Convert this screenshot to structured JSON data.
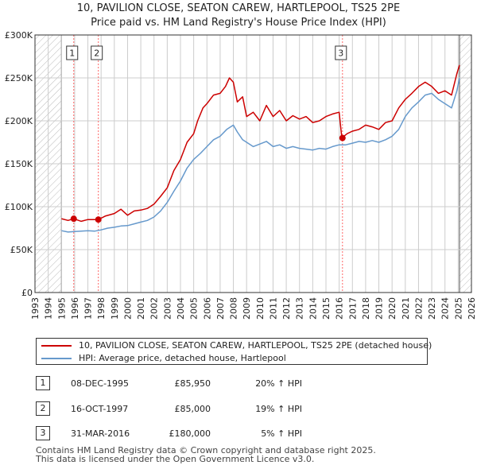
{
  "title_line1": "10, PAVILION CLOSE, SEATON CAREW, HARTLEPOOL, TS25 2PE",
  "title_line2": "Price paid vs. HM Land Registry's House Price Index (HPI)",
  "colors": {
    "property": "#cc0000",
    "hpi": "#6699cc",
    "grid": "#cccccc",
    "vline": "#ff6666"
  },
  "chart_data": {
    "type": "line",
    "xlim": [
      1993,
      2026
    ],
    "ylim": [
      0,
      300000
    ],
    "yticks": [
      0,
      50000,
      100000,
      150000,
      200000,
      250000,
      300000
    ],
    "ytick_labels": [
      "£0",
      "£50K",
      "£100K",
      "£150K",
      "£200K",
      "£250K",
      "£300K"
    ],
    "xticks": [
      1993,
      1994,
      1995,
      1996,
      1997,
      1998,
      1999,
      2000,
      2001,
      2002,
      2003,
      2004,
      2005,
      2006,
      2007,
      2008,
      2009,
      2010,
      2011,
      2012,
      2013,
      2014,
      2015,
      2016,
      2017,
      2018,
      2019,
      2020,
      2021,
      2022,
      2023,
      2024,
      2025,
      2026
    ],
    "hatched_ranges": [
      [
        1993,
        1995.0
      ],
      [
        2025.1,
        2026
      ]
    ],
    "series": [
      {
        "name": "10, PAVILION CLOSE, SEATON CAREW, HARTLEPOOL, TS25 2PE (detached house)",
        "x": [
          1995.0,
          1995.5,
          1995.93,
          1996.5,
          1997.0,
          1997.79,
          1998.3,
          1999.0,
          1999.5,
          2000.0,
          2000.5,
          2001.0,
          2001.5,
          2002.0,
          2002.5,
          2003.0,
          2003.5,
          2004.0,
          2004.5,
          2005.0,
          2005.3,
          2005.7,
          2006.0,
          2006.5,
          2007.0,
          2007.4,
          2007.7,
          2008.0,
          2008.3,
          2008.7,
          2009.0,
          2009.5,
          2010.0,
          2010.5,
          2011.0,
          2011.5,
          2012.0,
          2012.5,
          2013.0,
          2013.5,
          2014.0,
          2014.5,
          2015.0,
          2015.5,
          2016.0,
          2016.2,
          2016.6,
          2017.0,
          2017.5,
          2018.0,
          2018.5,
          2019.0,
          2019.5,
          2020.0,
          2020.5,
          2021.0,
          2021.5,
          2022.0,
          2022.5,
          2023.0,
          2023.5,
          2024.0,
          2024.5,
          2024.9,
          2025.1
        ],
        "y": [
          86000,
          84000,
          85950,
          83000,
          85000,
          85000,
          89000,
          92000,
          97000,
          90000,
          95000,
          96000,
          98000,
          103000,
          112000,
          122000,
          142000,
          155000,
          175000,
          185000,
          200000,
          215000,
          220000,
          230000,
          232000,
          240000,
          250000,
          245000,
          222000,
          228000,
          205000,
          210000,
          200000,
          218000,
          205000,
          212000,
          200000,
          206000,
          202000,
          205000,
          198000,
          200000,
          205000,
          208000,
          210000,
          180000,
          185000,
          188000,
          190000,
          195000,
          193000,
          190000,
          198000,
          200000,
          215000,
          225000,
          232000,
          240000,
          245000,
          240000,
          232000,
          235000,
          230000,
          255000,
          265000
        ]
      },
      {
        "name": "HPI: Average price, detached house, Hartlepool",
        "x": [
          1995.0,
          1995.5,
          1996.0,
          1996.5,
          1997.0,
          1997.5,
          1998.0,
          1998.5,
          1999.0,
          1999.5,
          2000.0,
          2000.5,
          2001.0,
          2001.5,
          2002.0,
          2002.5,
          2003.0,
          2003.5,
          2004.0,
          2004.5,
          2005.0,
          2005.5,
          2006.0,
          2006.5,
          2007.0,
          2007.5,
          2008.0,
          2008.3,
          2008.7,
          2009.0,
          2009.5,
          2010.0,
          2010.5,
          2011.0,
          2011.5,
          2012.0,
          2012.5,
          2013.0,
          2013.5,
          2014.0,
          2014.5,
          2015.0,
          2015.5,
          2016.0,
          2016.5,
          2017.0,
          2017.5,
          2018.0,
          2018.5,
          2019.0,
          2019.5,
          2020.0,
          2020.5,
          2021.0,
          2021.5,
          2022.0,
          2022.5,
          2023.0,
          2023.5,
          2024.0,
          2024.5,
          2024.9,
          2025.1
        ],
        "y": [
          72000,
          70500,
          71000,
          71500,
          72000,
          71500,
          73000,
          75000,
          76000,
          77500,
          78000,
          80000,
          82000,
          84000,
          88000,
          95000,
          105000,
          118000,
          130000,
          145000,
          155000,
          162000,
          170000,
          178000,
          182000,
          190000,
          195000,
          187000,
          178000,
          175000,
          170000,
          173000,
          176000,
          170000,
          172000,
          168000,
          170000,
          168000,
          167000,
          166000,
          168000,
          167000,
          170000,
          172000,
          172000,
          174000,
          176000,
          175000,
          177000,
          175000,
          178000,
          182000,
          190000,
          205000,
          215000,
          222000,
          230000,
          232000,
          225000,
          220000,
          215000,
          235000,
          250000
        ]
      }
    ],
    "sales": [
      {
        "label": "1",
        "x": 1995.93,
        "y": 85950
      },
      {
        "label": "2",
        "x": 1997.79,
        "y": 85000
      },
      {
        "label": "3",
        "x": 2016.25,
        "y": 180000
      }
    ]
  },
  "legend": {
    "property": "10, PAVILION CLOSE, SEATON CAREW, HARTLEPOOL, TS25 2PE (detached house)",
    "hpi": "HPI: Average price, detached house, Hartlepool"
  },
  "transactions": [
    {
      "num": "1",
      "date": "08-DEC-1995",
      "price": "£85,950",
      "hpi": "20% ↑ HPI"
    },
    {
      "num": "2",
      "date": "16-OCT-1997",
      "price": "£85,000",
      "hpi": "19% ↑ HPI"
    },
    {
      "num": "3",
      "date": "31-MAR-2016",
      "price": "£180,000",
      "hpi": "5% ↑ HPI"
    }
  ],
  "footer_line1": "Contains HM Land Registry data © Crown copyright and database right 2025.",
  "footer_line2": "This data is licensed under the Open Government Licence v3.0."
}
